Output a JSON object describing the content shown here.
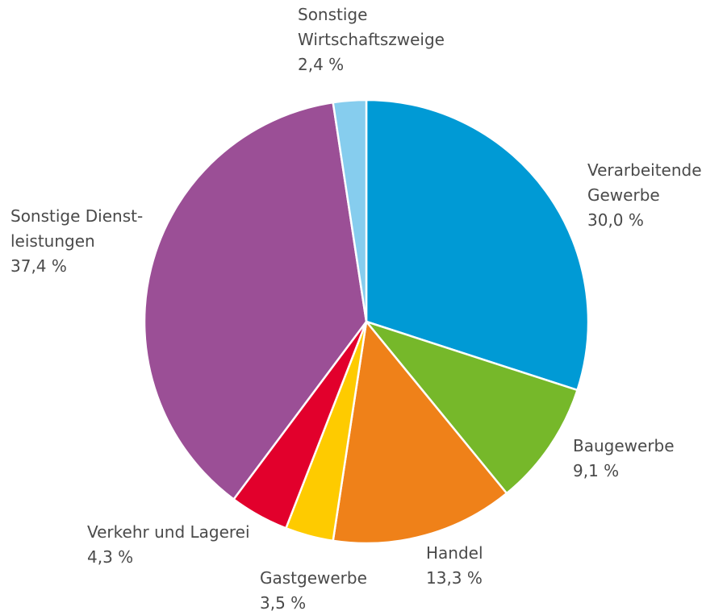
{
  "chart_data": {
    "type": "pie",
    "title": "",
    "start": "top",
    "direction": "clockwise",
    "slices": [
      {
        "id": "verarbeitendes-gewerbe",
        "lines": [
          "Verarbeitendes",
          "Gewerbe"
        ],
        "value_label": "30,0 %",
        "value": 30.0,
        "color": "#009ad5"
      },
      {
        "id": "baugewerbe",
        "lines": [
          "Baugewerbe"
        ],
        "value_label": "9,1 %",
        "value": 9.1,
        "color": "#76b82a"
      },
      {
        "id": "handel",
        "lines": [
          "Handel"
        ],
        "value_label": "13,3 %",
        "value": 13.3,
        "color": "#ef8119"
      },
      {
        "id": "gastgewerbe",
        "lines": [
          "Gastgewerbe"
        ],
        "value_label": "3,5 %",
        "value": 3.5,
        "color": "#fecb00"
      },
      {
        "id": "verkehr-und-lagerei",
        "lines": [
          "Verkehr und Lagerei"
        ],
        "value_label": "4,3 %",
        "value": 4.3,
        "color": "#e2002c"
      },
      {
        "id": "sonstige-dienstleistungen",
        "lines": [
          "Sonstige Dienst-",
          "leistungen"
        ],
        "value_label": "37,4 %",
        "value": 37.4,
        "color": "#9b4f96"
      },
      {
        "id": "sonstige-wirtschaftszweige",
        "lines": [
          "Sonstige",
          "Wirtschaftszweige"
        ],
        "value_label": "2,4 %",
        "value": 2.4,
        "color": "#86cdee"
      }
    ]
  }
}
